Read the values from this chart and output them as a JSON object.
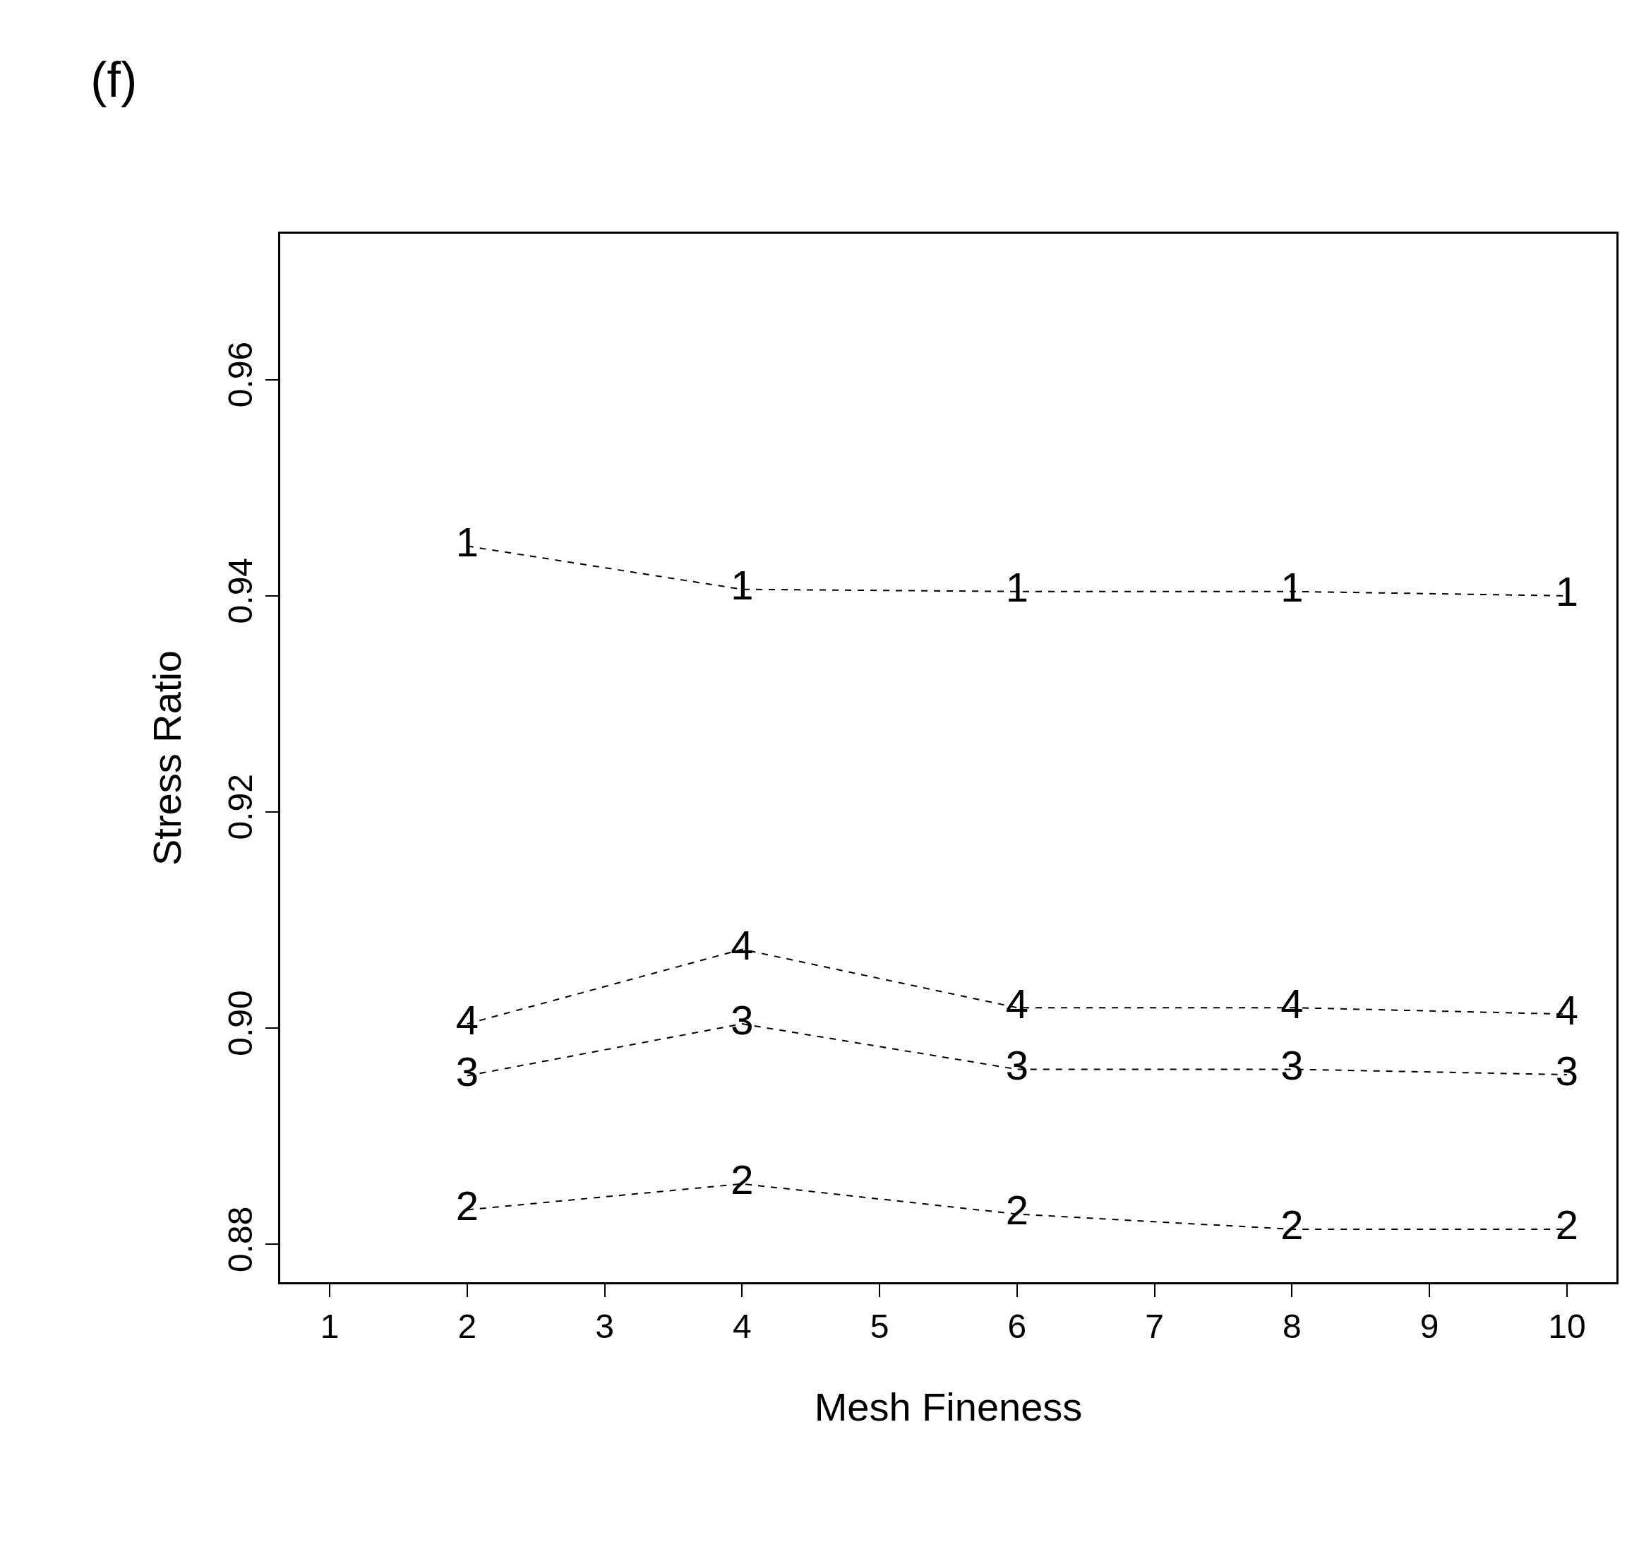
{
  "chart_data": {
    "type": "line",
    "title": "(f)",
    "xlabel": "Mesh Fineness",
    "ylabel": "Stress Ratio",
    "x": [
      2,
      4,
      6,
      8,
      10
    ],
    "series": [
      {
        "name": "1",
        "color": "#000000",
        "values": [
          0.9446,
          0.9406,
          0.9404,
          0.9404,
          0.94
        ]
      },
      {
        "name": "2",
        "color": "#000000",
        "values": [
          0.8832,
          0.8856,
          0.8828,
          0.8814,
          0.8814
        ]
      },
      {
        "name": "3",
        "color": "#000000",
        "values": [
          0.8956,
          0.9004,
          0.8962,
          0.8962,
          0.8957
        ]
      },
      {
        "name": "4",
        "color": "#000000",
        "values": [
          0.9004,
          0.9073,
          0.9019,
          0.9019,
          0.9013
        ]
      }
    ],
    "xlim": [
      0.64,
      10.36
    ],
    "xticks": [
      1,
      2,
      3,
      4,
      5,
      6,
      7,
      8,
      9,
      10
    ],
    "ylim": [
      0.8765,
      0.9735
    ],
    "yticks": [
      0.88,
      {
        "value": 0.9,
        "label": "0.90"
      },
      0.92,
      0.94,
      0.96
    ],
    "marker": "none",
    "line_style": "dashed"
  }
}
